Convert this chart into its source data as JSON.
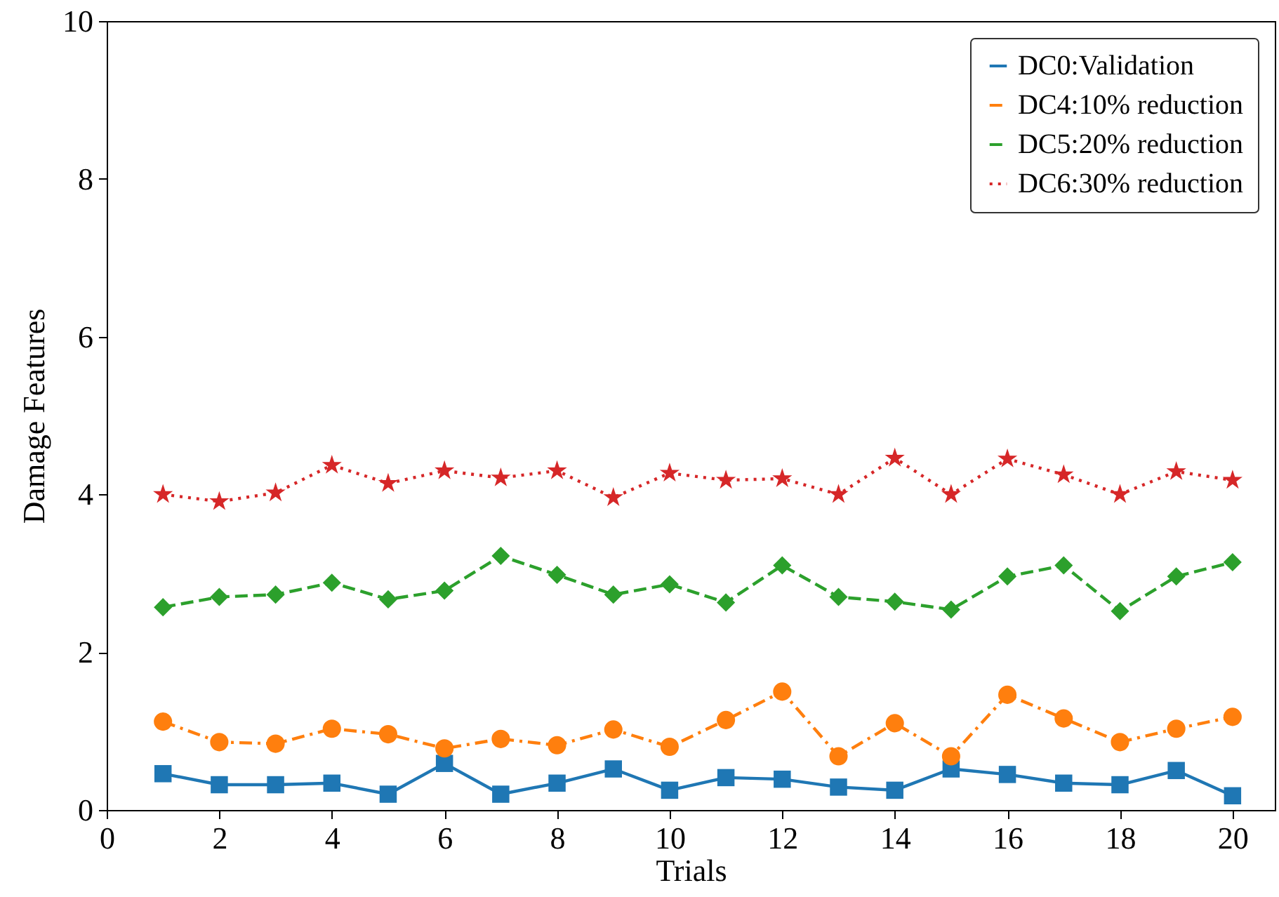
{
  "chart_data": {
    "type": "line",
    "xlabel": "Trials",
    "ylabel": "Damage Features",
    "x": [
      1,
      2,
      3,
      4,
      5,
      6,
      7,
      8,
      9,
      10,
      11,
      12,
      13,
      14,
      15,
      16,
      17,
      18,
      19,
      20
    ],
    "series": [
      {
        "name": "DC0:Validation",
        "color": "#1f77b4",
        "marker": "square",
        "line_style": "solid",
        "values": [
          0.46,
          0.32,
          0.32,
          0.34,
          0.2,
          0.59,
          0.2,
          0.34,
          0.52,
          0.25,
          0.41,
          0.39,
          0.29,
          0.25,
          0.52,
          0.45,
          0.34,
          0.32,
          0.5,
          0.18
        ]
      },
      {
        "name": "DC4:10% reduction",
        "color": "#ff7f0e",
        "marker": "circle",
        "line_style": "dashdot",
        "values": [
          1.12,
          0.86,
          0.84,
          1.03,
          0.96,
          0.78,
          0.9,
          0.82,
          1.02,
          0.8,
          1.14,
          1.5,
          0.68,
          1.1,
          0.68,
          1.46,
          1.16,
          0.86,
          1.03,
          1.18
        ]
      },
      {
        "name": "DC5:20% reduction",
        "color": "#2ca02c",
        "marker": "diamond",
        "line_style": "dashed",
        "values": [
          2.57,
          2.7,
          2.73,
          2.88,
          2.67,
          2.78,
          3.22,
          2.98,
          2.73,
          2.86,
          2.63,
          3.1,
          2.7,
          2.64,
          2.54,
          2.96,
          3.1,
          2.52,
          2.96,
          3.14
        ]
      },
      {
        "name": "DC6:30% reduction",
        "color": "#d62728",
        "marker": "star",
        "line_style": "dotted",
        "values": [
          4.0,
          3.91,
          4.02,
          4.37,
          4.14,
          4.3,
          4.21,
          4.3,
          3.96,
          4.27,
          4.18,
          4.2,
          4.0,
          4.46,
          4.0,
          4.45,
          4.25,
          4.0,
          4.29,
          4.18
        ]
      }
    ],
    "xlim": [
      0,
      20.75
    ],
    "xticks": [
      0,
      2,
      4,
      6,
      8,
      10,
      12,
      14,
      16,
      18,
      20
    ],
    "ylim": [
      0,
      10
    ],
    "yticks": [
      0,
      2,
      4,
      6,
      8,
      10
    ],
    "grid": false,
    "legend": "top right"
  }
}
